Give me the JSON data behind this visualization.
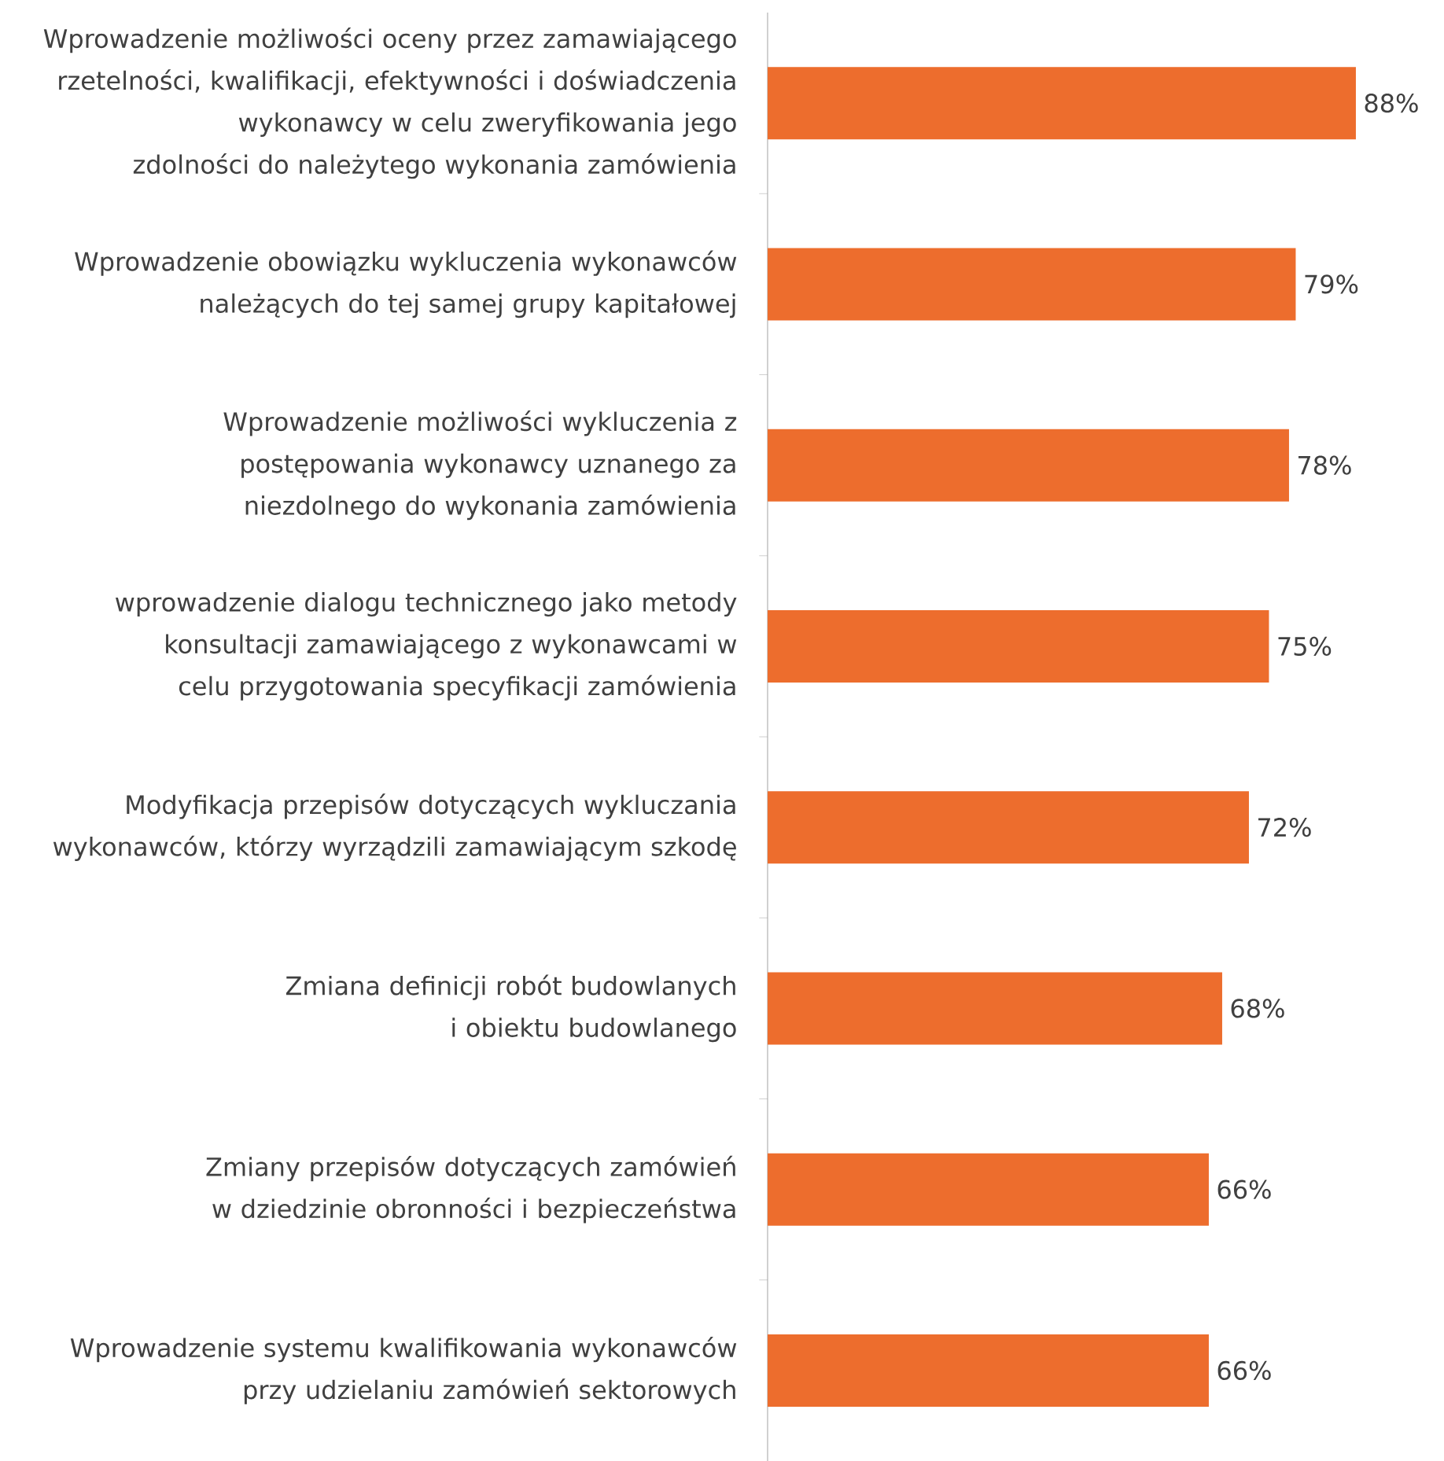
{
  "chart_data": {
    "type": "bar",
    "orientation": "horizontal",
    "categories": [
      "Wprowadzenie możliwości oceny przez zamawiającego rzetelności, kwalifikacji, efektywności i doświadczenia wykonawcy w celu zweryfikowania jego zdolności do należytego wykonania zamówienia",
      "Wprowadzenie obowiązku wykluczenia wykonawców należących do tej samej grupy kapitałowej",
      "Wprowadzenie możliwości wykluczenia z postępowania wykonawcy uznanego za niezdolnego do wykonania zamówienia",
      "wprowadzenie dialogu technicznego jako metody konsultacji zamawiającego z wykonawcami w celu przygotowania specyfikacji zamówienia",
      "Modyfikacja przepisów dotyczących wykluczania wykonawców, którzy wyrządzili zamawiającym szkodę",
      "Zmiana definicji robót budowlanych i obiektu budowlanego",
      "Zmiany przepisów dotyczących zamówień w dziedzinie obronności i bezpieczeństwa",
      "Wprowadzenie systemu kwalifikowania wykonawców przy udzielaniu zamówień sektorowych"
    ],
    "values": [
      88,
      79,
      78,
      75,
      72,
      68,
      66,
      66
    ],
    "value_labels": [
      "88%",
      "79%",
      "78%",
      "75%",
      "72%",
      "68%",
      "66%",
      "66%"
    ],
    "color": "#ed6d2d"
  }
}
